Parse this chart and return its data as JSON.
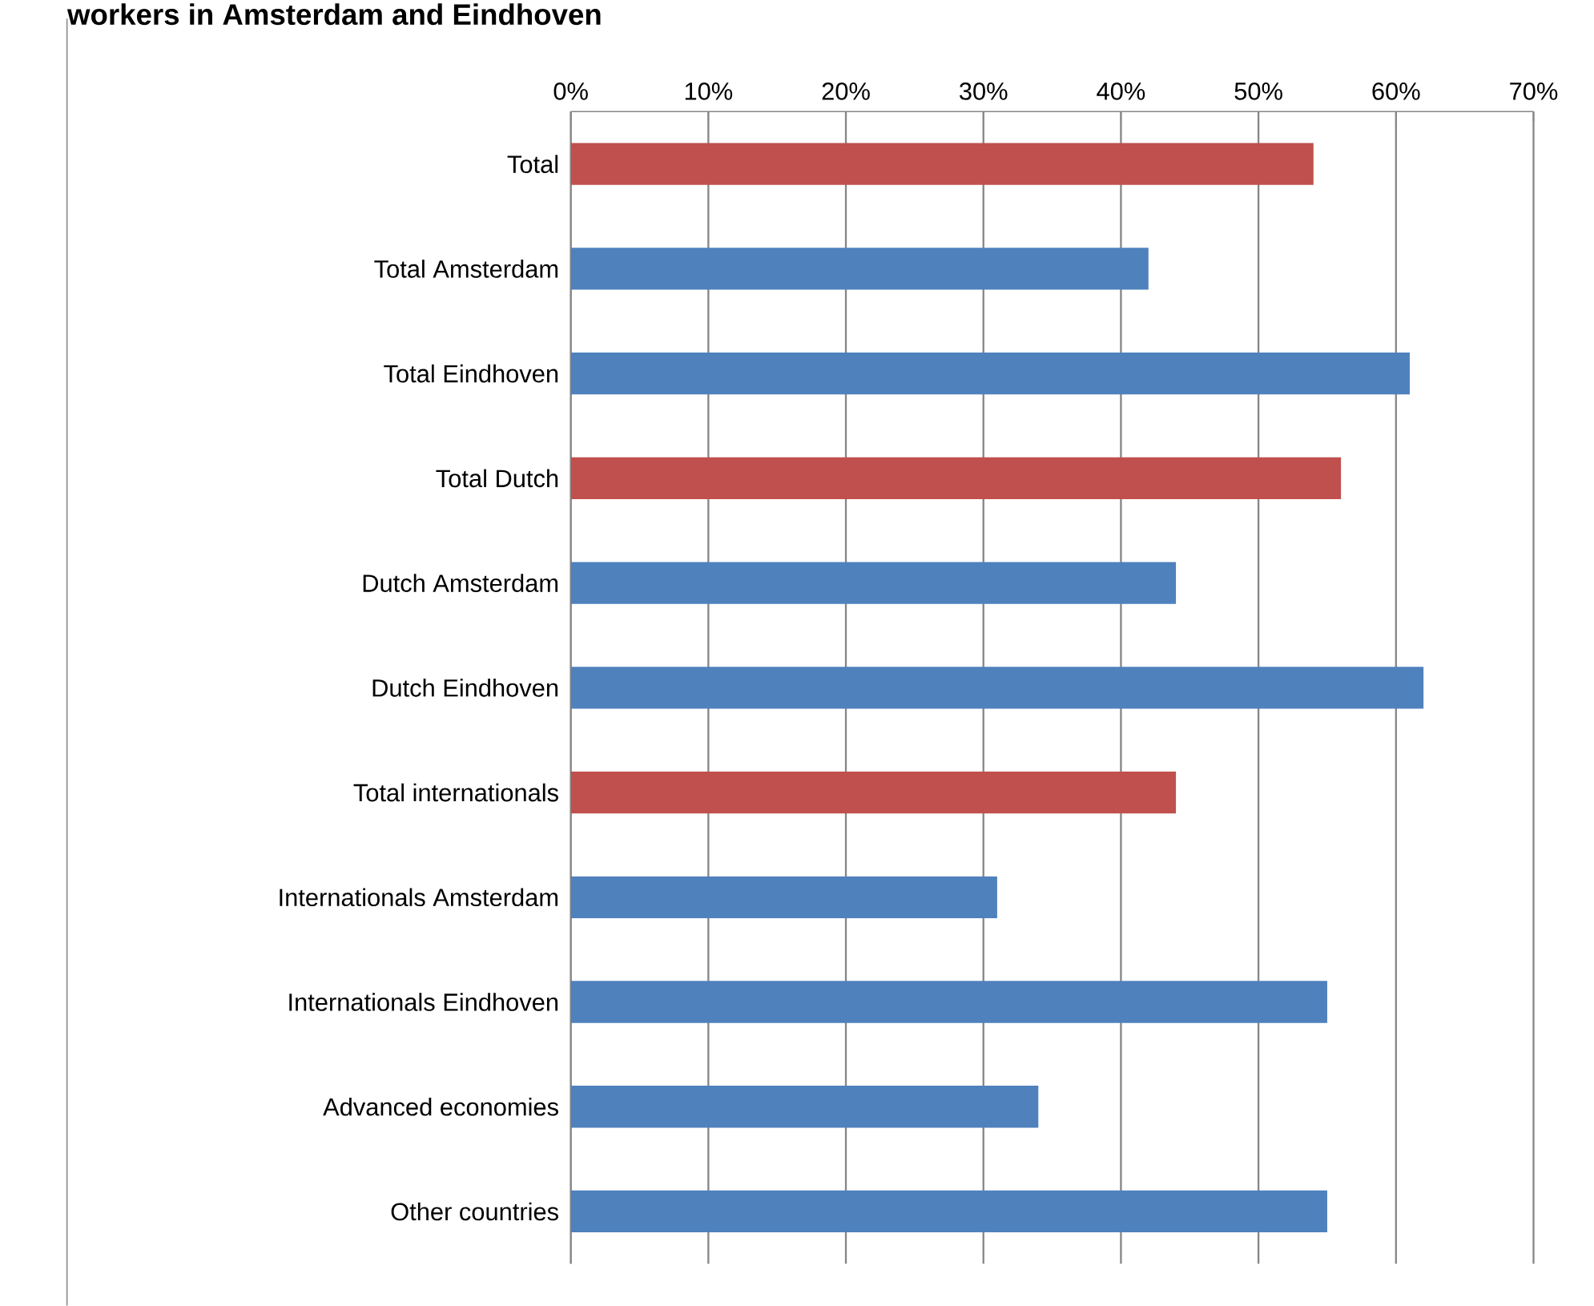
{
  "chart_data": {
    "type": "bar",
    "orientation": "horizontal",
    "title": "workers in Amsterdam and Eindhoven",
    "categories": [
      "Total",
      "Total Amsterdam",
      "Total Eindhoven",
      "Total Dutch",
      "Dutch Amsterdam",
      "Dutch Eindhoven",
      "Total internationals",
      "Internationals Amsterdam",
      "Internationals Eindhoven",
      "Advanced economies",
      "Other countries"
    ],
    "values": [
      54,
      42,
      61,
      56,
      44,
      62,
      44,
      31,
      55,
      34,
      55
    ],
    "colors": [
      "#c0504d",
      "#4f81bd",
      "#4f81bd",
      "#c0504d",
      "#4f81bd",
      "#4f81bd",
      "#c0504d",
      "#4f81bd",
      "#4f81bd",
      "#4f81bd",
      "#4f81bd"
    ],
    "xlim": [
      0,
      70
    ],
    "xticks": [
      {
        "value": 0,
        "label": "0%"
      },
      {
        "value": 10,
        "label": "10%"
      },
      {
        "value": 20,
        "label": "20%"
      },
      {
        "value": 30,
        "label": "30%"
      },
      {
        "value": 40,
        "label": "40%"
      },
      {
        "value": 50,
        "label": "50%"
      },
      {
        "value": 60,
        "label": "60%"
      },
      {
        "value": 70,
        "label": "70%"
      }
    ],
    "grid": "x"
  }
}
